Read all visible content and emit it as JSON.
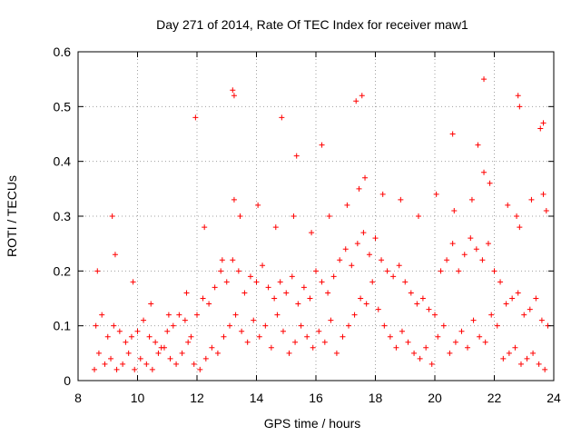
{
  "chart_data": {
    "type": "scatter",
    "title": "Day 271 of 2014, Rate Of TEC Index for receiver maw1",
    "xlabel": "GPS time / hours",
    "ylabel": "ROTI / TECUs",
    "xlim": [
      8,
      24
    ],
    "ylim": [
      0,
      0.6
    ],
    "x_ticks": [
      "8",
      "10",
      "12",
      "14",
      "16",
      "18",
      "20",
      "22",
      "24"
    ],
    "y_ticks": [
      "0",
      "0.1",
      "0.2",
      "0.3",
      "0.4",
      "0.5",
      "0.6"
    ],
    "grid": true,
    "legend": "none",
    "marker": "+",
    "color": "#ff0000",
    "series": [
      {
        "x": [
          8.55,
          8.7,
          8.9,
          9.1,
          9.3,
          9.5,
          9.7,
          9.9,
          10.1,
          10.3,
          10.5,
          10.7,
          10.9,
          11.1,
          11.3,
          11.5,
          11.7,
          11.9,
          12.1,
          12.3,
          12.5,
          12.7,
          12.9,
          13.1,
          13.3,
          13.5,
          13.7,
          13.9,
          14.1,
          14.3,
          14.5,
          14.7,
          14.9,
          15.1,
          15.3,
          15.5,
          15.7,
          15.9,
          16.1,
          16.3,
          16.5,
          16.7,
          16.9,
          17.1,
          17.3,
          17.5,
          17.7,
          17.9,
          18.1,
          18.3,
          18.5,
          18.7,
          18.9,
          19.1,
          19.3,
          19.5,
          19.7,
          19.9,
          20.1,
          20.3,
          20.5,
          20.7,
          20.9,
          21.1,
          21.3,
          21.5,
          21.7,
          21.9,
          22.1,
          22.3,
          22.5,
          22.7,
          22.9,
          23.1,
          23.3,
          23.5,
          23.7,
          8.6,
          8.8,
          9.0,
          9.2,
          9.4,
          9.6,
          9.8,
          10.0,
          10.2,
          10.4,
          10.6,
          10.8,
          11.0,
          11.2,
          11.4,
          11.6,
          11.8,
          12.0,
          12.2,
          12.4,
          12.6,
          12.8,
          13.0,
          13.2,
          13.4,
          13.6,
          13.8,
          14.0,
          14.2,
          14.4,
          14.6,
          14.8,
          15.0,
          15.2,
          15.4,
          15.6,
          15.8,
          16.0,
          16.2,
          16.4,
          16.6,
          16.8,
          17.0,
          17.2,
          17.4,
          17.6,
          17.8,
          18.0,
          18.2,
          18.4,
          18.6,
          18.8,
          19.0,
          19.2,
          19.4,
          19.6,
          19.8,
          20.0,
          20.2,
          20.4,
          20.6,
          20.8,
          21.0,
          21.2,
          21.4,
          21.6,
          21.8,
          22.0,
          22.2,
          22.4,
          22.6,
          22.8,
          23.0,
          23.2,
          23.4,
          23.6,
          23.8,
          8.65,
          9.25,
          9.85,
          10.45,
          11.05,
          11.65,
          12.25,
          12.85,
          13.25,
          13.45,
          14.05,
          14.65,
          15.25,
          15.85,
          16.45,
          17.05,
          17.45,
          17.65,
          18.25,
          18.85,
          19.45,
          20.05,
          20.65,
          21.25,
          21.65,
          21.85,
          22.45,
          22.75,
          22.85,
          23.25,
          23.65,
          23.75,
          9.15,
          11.95,
          13.2,
          13.25,
          14.85,
          15.35,
          16.2,
          17.35,
          17.55,
          20.6,
          21.45,
          21.65,
          22.8,
          22.85,
          23.55,
          23.65
        ],
        "y": [
          0.02,
          0.05,
          0.03,
          0.04,
          0.02,
          0.03,
          0.05,
          0.02,
          0.04,
          0.03,
          0.02,
          0.05,
          0.06,
          0.04,
          0.03,
          0.05,
          0.07,
          0.03,
          0.02,
          0.04,
          0.06,
          0.05,
          0.08,
          0.1,
          0.12,
          0.09,
          0.07,
          0.11,
          0.08,
          0.1,
          0.06,
          0.12,
          0.09,
          0.05,
          0.07,
          0.1,
          0.08,
          0.06,
          0.09,
          0.07,
          0.11,
          0.05,
          0.08,
          0.1,
          0.12,
          0.15,
          0.14,
          0.18,
          0.13,
          0.1,
          0.08,
          0.06,
          0.09,
          0.07,
          0.05,
          0.04,
          0.06,
          0.03,
          0.08,
          0.1,
          0.05,
          0.07,
          0.09,
          0.06,
          0.11,
          0.08,
          0.07,
          0.12,
          0.1,
          0.04,
          0.05,
          0.06,
          0.03,
          0.04,
          0.05,
          0.03,
          0.02,
          0.1,
          0.12,
          0.08,
          0.1,
          0.09,
          0.07,
          0.08,
          0.09,
          0.11,
          0.08,
          0.07,
          0.06,
          0.09,
          0.1,
          0.12,
          0.11,
          0.08,
          0.12,
          0.15,
          0.14,
          0.17,
          0.2,
          0.18,
          0.22,
          0.2,
          0.16,
          0.19,
          0.18,
          0.21,
          0.17,
          0.15,
          0.18,
          0.16,
          0.19,
          0.14,
          0.17,
          0.15,
          0.2,
          0.18,
          0.16,
          0.19,
          0.22,
          0.24,
          0.21,
          0.25,
          0.27,
          0.23,
          0.26,
          0.22,
          0.2,
          0.19,
          0.21,
          0.18,
          0.16,
          0.14,
          0.15,
          0.13,
          0.12,
          0.2,
          0.22,
          0.25,
          0.2,
          0.23,
          0.26,
          0.24,
          0.22,
          0.25,
          0.2,
          0.18,
          0.14,
          0.15,
          0.16,
          0.12,
          0.13,
          0.15,
          0.11,
          0.1,
          0.2,
          0.23,
          0.18,
          0.14,
          0.12,
          0.16,
          0.28,
          0.22,
          0.33,
          0.3,
          0.32,
          0.28,
          0.3,
          0.27,
          0.3,
          0.32,
          0.35,
          0.37,
          0.34,
          0.33,
          0.3,
          0.34,
          0.31,
          0.33,
          0.38,
          0.36,
          0.32,
          0.3,
          0.28,
          0.33,
          0.34,
          0.31,
          0.3,
          0.48,
          0.53,
          0.52,
          0.48,
          0.41,
          0.43,
          0.51,
          0.52,
          0.45,
          0.43,
          0.55,
          0.52,
          0.5,
          0.46,
          0.47
        ]
      }
    ]
  }
}
